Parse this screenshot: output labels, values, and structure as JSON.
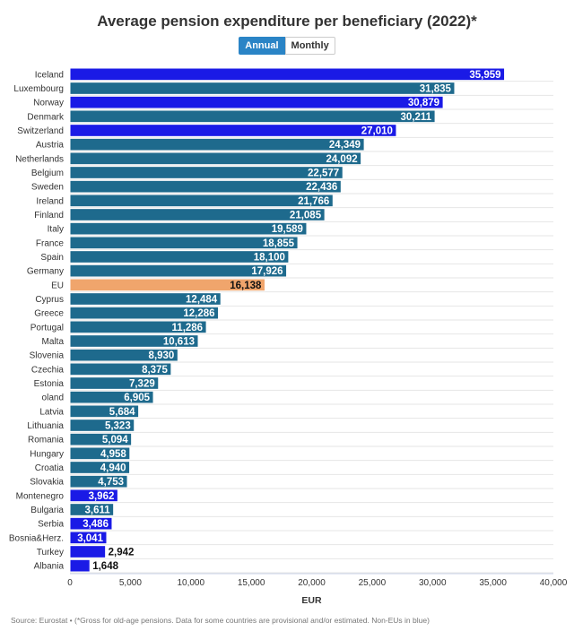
{
  "title": "Average pension expenditure per beneficiary (2022)*",
  "toggle": {
    "annual_label": "Annual",
    "monthly_label": "Monthly"
  },
  "source": "Source: Eurostat • (*Gross for old-age pensions. Data for some countries are provisional and/or estimated. Non-EUs in blue)",
  "colors": {
    "eu_member": "#1e6a8d",
    "non_eu": "#1a1ae6",
    "eu_average": "#f0a56c"
  },
  "chart_data": {
    "type": "bar",
    "orientation": "horizontal",
    "title": "Average pension expenditure per beneficiary (2022)*",
    "xlabel": "EUR",
    "xlim": [
      0,
      40000
    ],
    "ticks": [
      0,
      5000,
      10000,
      15000,
      20000,
      25000,
      30000,
      35000,
      40000
    ],
    "tick_labels": [
      "0",
      "5,000",
      "10,000",
      "15,000",
      "20,000",
      "25,000",
      "30,000",
      "35,000",
      "40,000"
    ],
    "grid": true,
    "categories": [
      "Iceland",
      "Luxembourg",
      "Norway",
      "Denmark",
      "Switzerland",
      "Austria",
      "Netherlands",
      "Belgium",
      "Sweden",
      "Ireland",
      "Finland",
      "Italy",
      "France",
      "Spain",
      "Germany",
      "EU",
      "Cyprus",
      "Greece",
      "Portugal",
      "Malta",
      "Slovenia",
      "Czechia",
      "Estonia",
      "oland",
      "Latvia",
      "Lithuania",
      "Romania",
      "Hungary",
      "Croatia",
      "Slovakia",
      "Montenegro",
      "Bulgaria",
      "Serbia",
      "Bosnia&Herz.",
      "Turkey",
      "Albania"
    ],
    "values": [
      35959,
      31835,
      30879,
      30211,
      27010,
      24349,
      24092,
      22577,
      22436,
      21766,
      21085,
      19589,
      18855,
      18100,
      17926,
      16138,
      12484,
      12286,
      11286,
      10613,
      8930,
      8375,
      7329,
      6905,
      5684,
      5323,
      5094,
      4958,
      4940,
      4753,
      3962,
      3611,
      3486,
      3041,
      2942,
      1648
    ],
    "value_labels": [
      "35,959",
      "31,835",
      "30,879",
      "30,211",
      "27,010",
      "24,349",
      "24,092",
      "22,577",
      "22,436",
      "21,766",
      "21,085",
      "19,589",
      "18,855",
      "18,100",
      "17,926",
      "16,138",
      "12,484",
      "12,286",
      "11,286",
      "10,613",
      "8,930",
      "8,375",
      "7,329",
      "6,905",
      "5,684",
      "5,323",
      "5,094",
      "4,958",
      "4,940",
      "4,753",
      "3,962",
      "3,611",
      "3,486",
      "3,041",
      "2,942",
      "1,648"
    ],
    "groups": [
      "non_eu",
      "eu_member",
      "non_eu",
      "eu_member",
      "non_eu",
      "eu_member",
      "eu_member",
      "eu_member",
      "eu_member",
      "eu_member",
      "eu_member",
      "eu_member",
      "eu_member",
      "eu_member",
      "eu_member",
      "eu_average",
      "eu_member",
      "eu_member",
      "eu_member",
      "eu_member",
      "eu_member",
      "eu_member",
      "eu_member",
      "eu_member",
      "eu_member",
      "eu_member",
      "eu_member",
      "eu_member",
      "eu_member",
      "eu_member",
      "non_eu",
      "eu_member",
      "non_eu",
      "non_eu",
      "non_eu",
      "non_eu"
    ]
  }
}
